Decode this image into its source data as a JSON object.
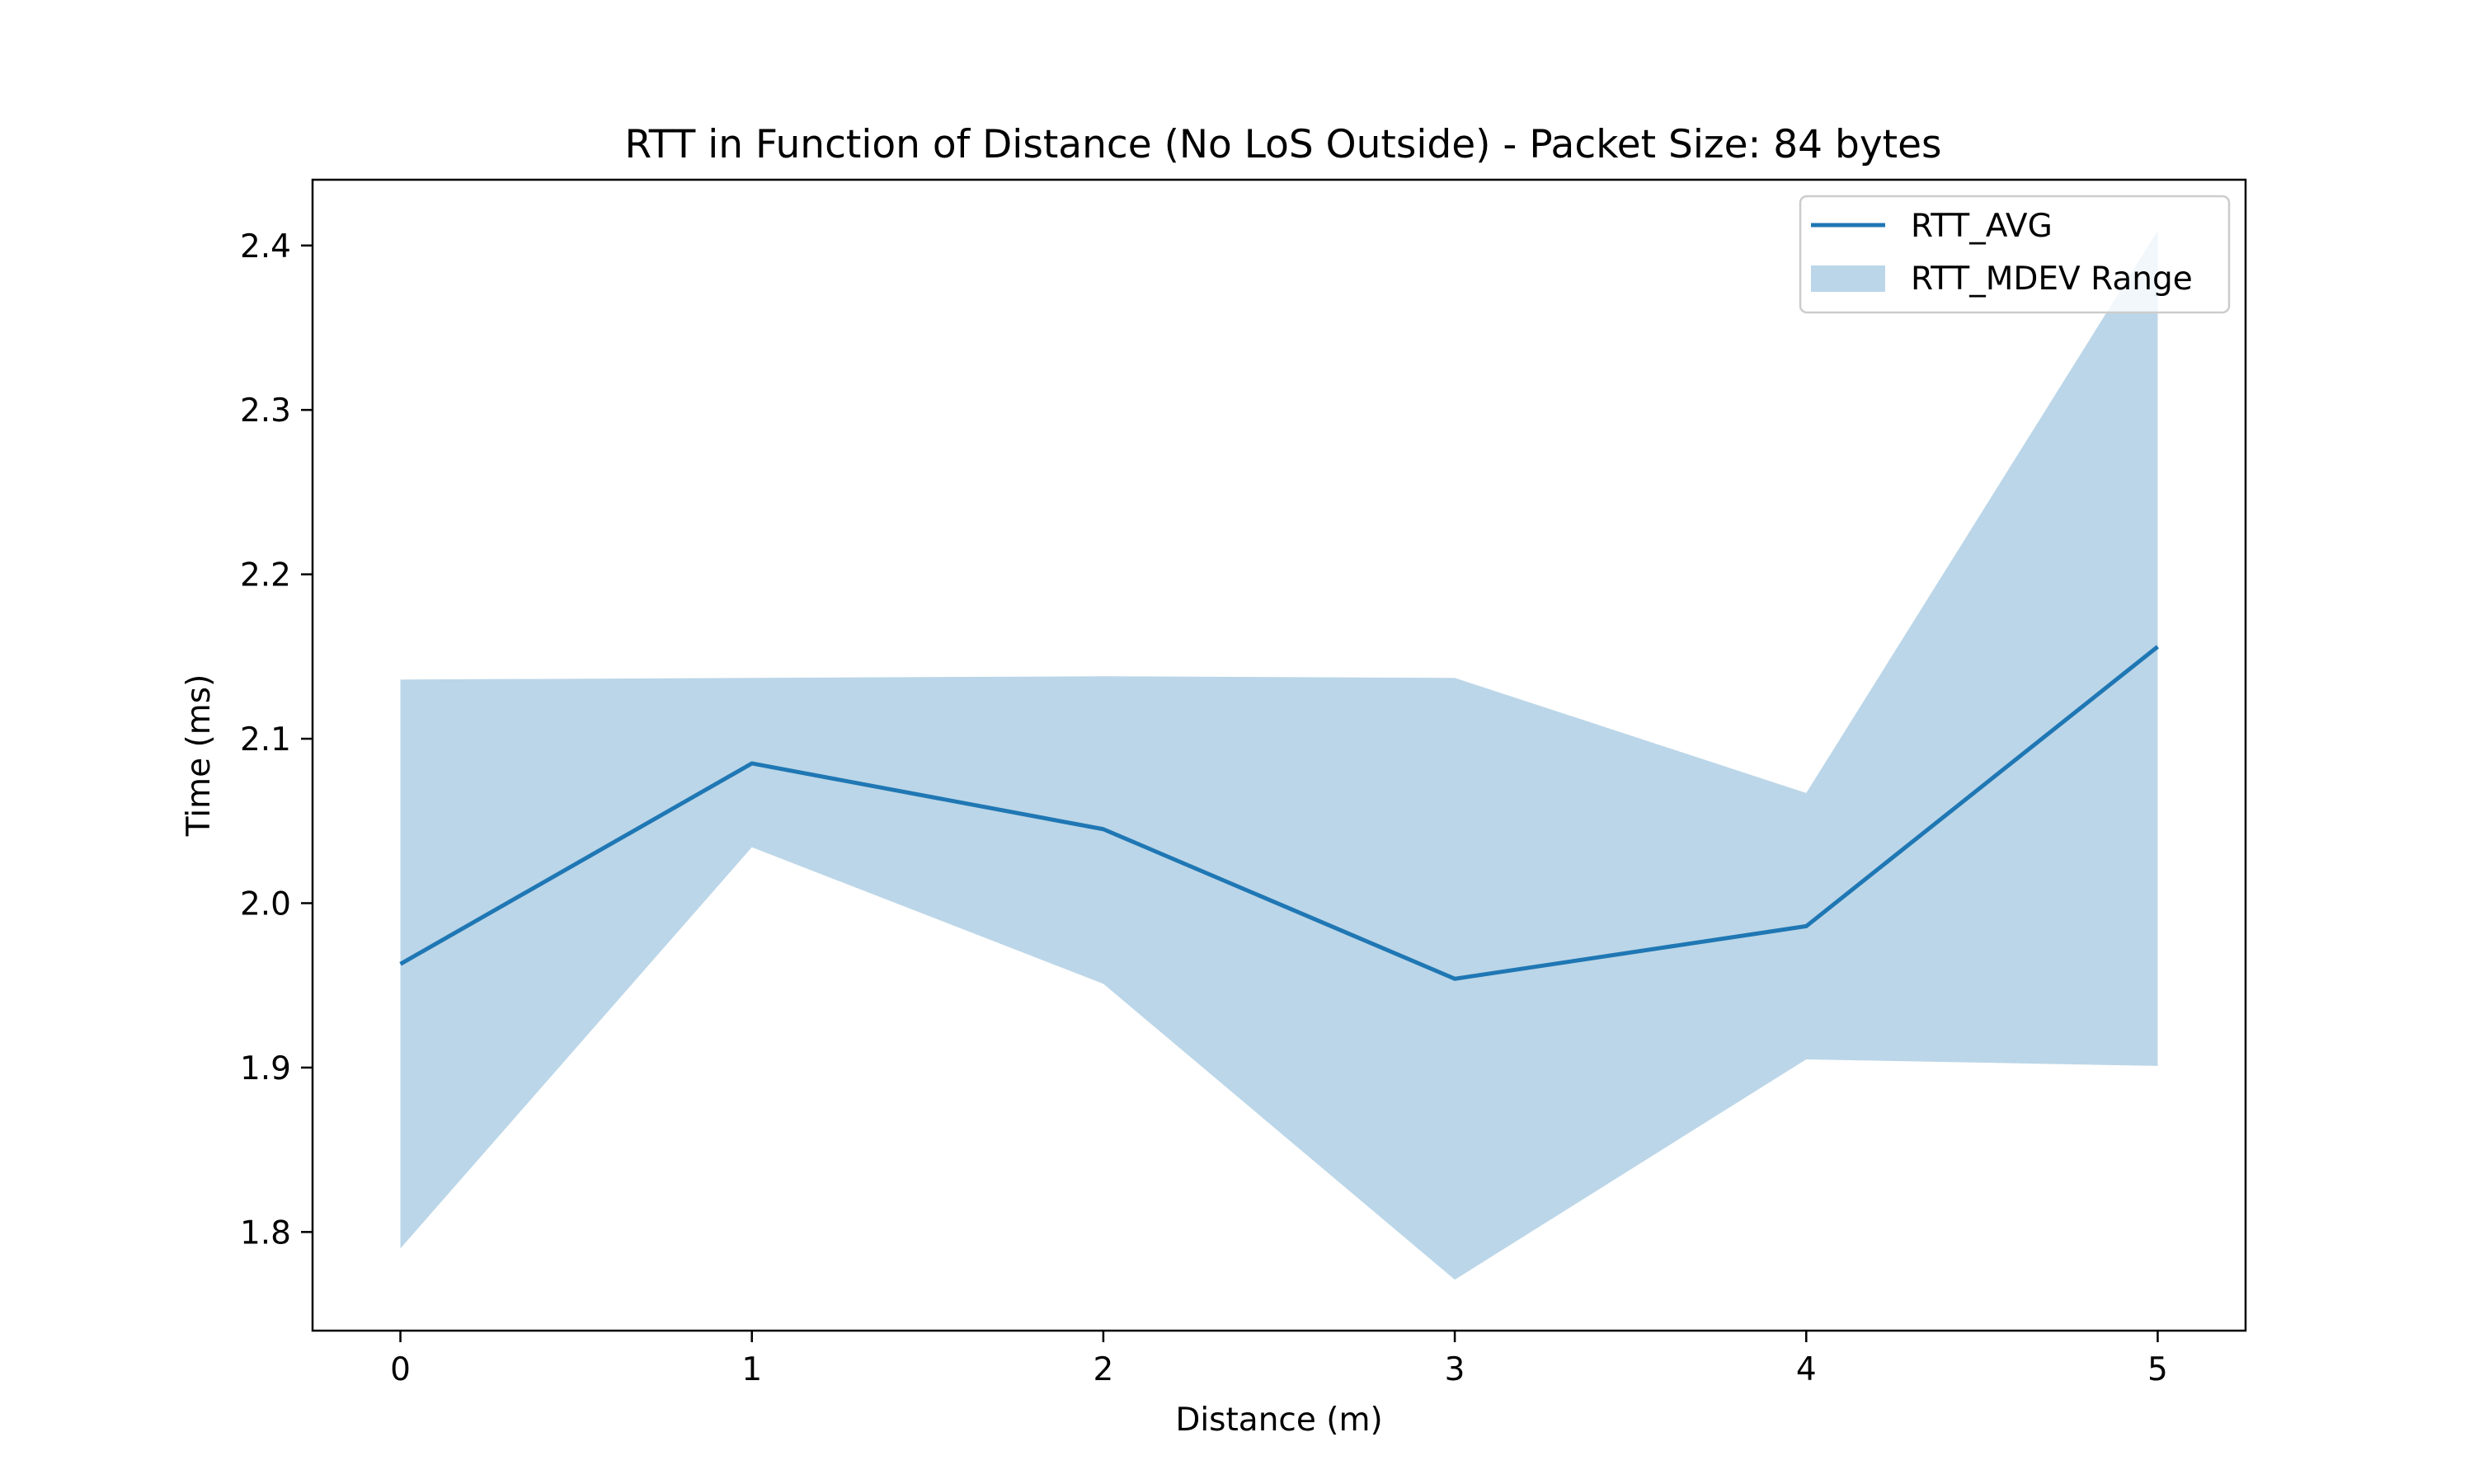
{
  "chart_data": {
    "type": "line",
    "title": "RTT in Function of Distance (No LoS Outside) - Packet Size: 84 bytes",
    "xlabel": "Distance (m)",
    "ylabel": "Time (ms)",
    "x": [
      0,
      1,
      2,
      3,
      4,
      5
    ],
    "xlim": [
      -0.25,
      5.25
    ],
    "ylim": [
      1.74,
      2.44
    ],
    "xticks": [
      0,
      1,
      2,
      3,
      4,
      5
    ],
    "xtick_labels": [
      "0",
      "1",
      "2",
      "3",
      "4",
      "5"
    ],
    "yticks": [
      1.8,
      1.9,
      2.0,
      2.1,
      2.2,
      2.3,
      2.4
    ],
    "ytick_labels": [
      "1.8",
      "1.9",
      "2.0",
      "2.1",
      "2.2",
      "2.3",
      "2.4"
    ],
    "grid": false,
    "legend_position": "top-right",
    "series": [
      {
        "name": "RTT_AVG",
        "kind": "line",
        "color": "#1f77b4",
        "values": [
          1.963,
          2.085,
          2.045,
          1.954,
          1.986,
          2.156
        ]
      }
    ],
    "band": {
      "name": "RTT_MDEV Range",
      "kind": "fill_between",
      "color": "#1f77b4",
      "opacity": 0.3,
      "upper": [
        2.136,
        2.137,
        2.138,
        2.137,
        2.067,
        2.409
      ],
      "lower": [
        1.79,
        2.034,
        1.951,
        1.771,
        1.905,
        1.901
      ]
    }
  }
}
